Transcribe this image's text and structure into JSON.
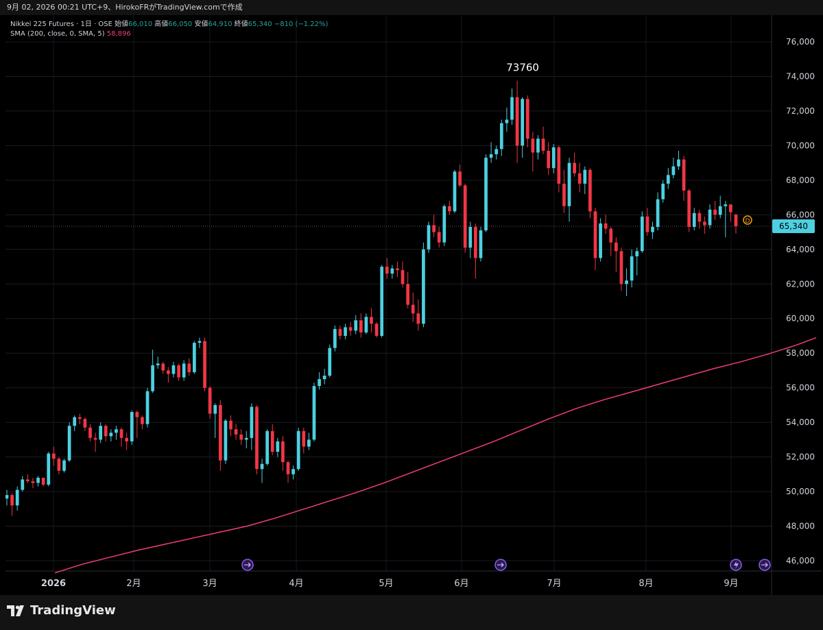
{
  "header": {
    "attribution": "9月 02, 2026 00:21 UTC+9、HirokoFRがTradingView.comで作成"
  },
  "legend": {
    "symbol": "Nikkei 225 Futures · 1日 · OSE",
    "open_label": "始値",
    "open": "66,010",
    "high_label": "高値",
    "high": "66,050",
    "low_label": "安値",
    "low": "64,910",
    "close_label": "終値",
    "close": "65,340",
    "change": "−810 (−1.22%)",
    "sma_label": "SMA (200, close, 0, SMA, 5)",
    "sma_value": "58,896"
  },
  "brand": {
    "logo_text": "TradingView"
  },
  "colors": {
    "up": "#4dd0e1",
    "down": "#f23645",
    "sma": "#f23d7a",
    "price_tag": "#4dd0e1",
    "background": "#000000"
  },
  "chart_data": {
    "type": "candlestick",
    "y_axis": {
      "min": 45300,
      "max": 77000,
      "ticks": [
        46000,
        48000,
        50000,
        52000,
        54000,
        56000,
        58000,
        60000,
        62000,
        64000,
        66000,
        68000,
        70000,
        72000,
        74000,
        76000
      ],
      "side": "right"
    },
    "x_tick_labels": [
      "2026",
      "2月",
      "3月",
      "4月",
      "5月",
      "6月",
      "7月",
      "8月",
      "9月"
    ],
    "last_price": 65340,
    "last_price_label": "65,340",
    "high_annotation": {
      "value": 73760,
      "label": "73760"
    },
    "ohlc": [
      [
        49600,
        50100,
        49200,
        49800
      ],
      [
        49800,
        49900,
        48600,
        49200
      ],
      [
        49200,
        50300,
        48900,
        50100
      ],
      [
        50100,
        50900,
        50000,
        50700
      ],
      [
        50700,
        51000,
        50500,
        50600
      ],
      [
        50600,
        50800,
        50200,
        50500
      ],
      [
        50500,
        50900,
        50300,
        50800
      ],
      [
        50800,
        50700,
        50300,
        50400
      ],
      [
        50400,
        52300,
        50300,
        52200
      ],
      [
        52200,
        52600,
        51500,
        51900
      ],
      [
        51900,
        52000,
        51000,
        51200
      ],
      [
        51200,
        51900,
        51100,
        51800
      ],
      [
        51800,
        54000,
        51700,
        53800
      ],
      [
        53800,
        54400,
        53500,
        54300
      ],
      [
        54300,
        54500,
        53900,
        54200
      ],
      [
        54200,
        54300,
        53500,
        53700
      ],
      [
        53700,
        53900,
        52900,
        53100
      ],
      [
        53100,
        53400,
        52300,
        53000
      ],
      [
        53000,
        54000,
        52800,
        53800
      ],
      [
        53800,
        53900,
        52900,
        53200
      ],
      [
        53200,
        53600,
        52900,
        53400
      ],
      [
        53400,
        53800,
        53000,
        53600
      ],
      [
        53600,
        53700,
        52600,
        53100
      ],
      [
        53100,
        53400,
        52400,
        52900
      ],
      [
        52900,
        54700,
        52700,
        54600
      ],
      [
        54600,
        54700,
        53100,
        54300
      ],
      [
        54300,
        54400,
        53600,
        53900
      ],
      [
        53900,
        56000,
        53700,
        55800
      ],
      [
        55800,
        58200,
        55700,
        57300
      ],
      [
        57300,
        57800,
        57100,
        57400
      ],
      [
        57400,
        57500,
        56800,
        57000
      ],
      [
        57000,
        57200,
        56300,
        56800
      ],
      [
        56800,
        57500,
        56600,
        57300
      ],
      [
        57300,
        57400,
        56400,
        56600
      ],
      [
        56600,
        57600,
        56400,
        57400
      ],
      [
        57400,
        57700,
        56700,
        56900
      ],
      [
        56900,
        58700,
        56800,
        58600
      ],
      [
        58600,
        58900,
        58300,
        58700
      ],
      [
        58700,
        58900,
        55800,
        56000
      ],
      [
        56000,
        56100,
        54200,
        54500
      ],
      [
        54500,
        55100,
        53100,
        55000
      ],
      [
        55000,
        55300,
        51200,
        51800
      ],
      [
        51800,
        54200,
        51600,
        54100
      ],
      [
        54100,
        54400,
        53200,
        53600
      ],
      [
        53600,
        53900,
        53000,
        53300
      ],
      [
        53300,
        53600,
        52700,
        53000
      ],
      [
        53000,
        53500,
        52500,
        53100
      ],
      [
        53100,
        55100,
        52400,
        54900
      ],
      [
        54900,
        55000,
        51000,
        51300
      ],
      [
        51300,
        51900,
        50500,
        51600
      ],
      [
        51600,
        53600,
        51500,
        53500
      ],
      [
        53500,
        53900,
        52100,
        52300
      ],
      [
        52300,
        53100,
        52000,
        52900
      ],
      [
        52900,
        53200,
        51200,
        51700
      ],
      [
        51700,
        51800,
        50500,
        51000
      ],
      [
        51000,
        51500,
        50700,
        51300
      ],
      [
        51300,
        53700,
        51200,
        53500
      ],
      [
        53500,
        53700,
        52200,
        52600
      ],
      [
        52600,
        53400,
        52400,
        53000
      ],
      [
        53000,
        56300,
        52900,
        56100
      ],
      [
        56100,
        56900,
        55900,
        56500
      ],
      [
        56500,
        57100,
        56200,
        56700
      ],
      [
        56700,
        58500,
        56600,
        58300
      ],
      [
        58300,
        59600,
        58100,
        59400
      ],
      [
        59400,
        59600,
        58800,
        59000
      ],
      [
        59000,
        59700,
        58800,
        59500
      ],
      [
        59500,
        59800,
        59000,
        59300
      ],
      [
        59300,
        60200,
        59100,
        59900
      ],
      [
        59900,
        60300,
        58900,
        59200
      ],
      [
        59200,
        60300,
        59100,
        60100
      ],
      [
        60100,
        60600,
        59200,
        59700
      ],
      [
        59700,
        59800,
        58900,
        59000
      ],
      [
        59000,
        63100,
        58900,
        63000
      ],
      [
        63000,
        63500,
        62300,
        62600
      ],
      [
        62600,
        63100,
        62300,
        62900
      ],
      [
        62900,
        63300,
        62400,
        62800
      ],
      [
        62800,
        63300,
        61800,
        62000
      ],
      [
        62000,
        62700,
        60600,
        60800
      ],
      [
        60800,
        61500,
        59800,
        60300
      ],
      [
        60300,
        61100,
        59300,
        59700
      ],
      [
        59700,
        64400,
        59500,
        64000
      ],
      [
        64000,
        65600,
        63800,
        65400
      ],
      [
        65400,
        66000,
        64700,
        65000
      ],
      [
        65000,
        65300,
        64100,
        64400
      ],
      [
        64400,
        66600,
        64200,
        66500
      ],
      [
        66500,
        66800,
        66000,
        66200
      ],
      [
        66200,
        68600,
        66100,
        68500
      ],
      [
        68500,
        68900,
        67600,
        67700
      ],
      [
        67700,
        67800,
        63800,
        64100
      ],
      [
        64100,
        65600,
        63500,
        65300
      ],
      [
        65300,
        65500,
        62300,
        63500
      ],
      [
        63500,
        65300,
        63300,
        65100
      ],
      [
        65100,
        69500,
        65000,
        69300
      ],
      [
        69300,
        70200,
        69000,
        69500
      ],
      [
        69500,
        70000,
        69200,
        69800
      ],
      [
        69800,
        71500,
        69400,
        71300
      ],
      [
        71300,
        72200,
        70800,
        71500
      ],
      [
        71500,
        73300,
        71200,
        72800
      ],
      [
        72800,
        73760,
        69000,
        70000
      ],
      [
        70000,
        72800,
        69300,
        72700
      ],
      [
        72700,
        72900,
        69900,
        70400
      ],
      [
        70400,
        70800,
        68500,
        69600
      ],
      [
        69600,
        70600,
        69200,
        70400
      ],
      [
        70400,
        71100,
        69500,
        69700
      ],
      [
        69700,
        70200,
        68300,
        68700
      ],
      [
        68700,
        70100,
        68400,
        69900
      ],
      [
        69900,
        70000,
        67300,
        67800
      ],
      [
        67800,
        68600,
        66100,
        66500
      ],
      [
        66500,
        69300,
        65600,
        69000
      ],
      [
        69000,
        69600,
        68200,
        68400
      ],
      [
        68400,
        69000,
        67300,
        67800
      ],
      [
        67800,
        68800,
        67200,
        68600
      ],
      [
        68600,
        68700,
        65800,
        66200
      ],
      [
        66200,
        66400,
        62800,
        63500
      ],
      [
        63500,
        65800,
        63300,
        65500
      ],
      [
        65500,
        66000,
        64900,
        65200
      ],
      [
        65200,
        65300,
        63600,
        64400
      ],
      [
        64400,
        64700,
        62700,
        63900
      ],
      [
        63900,
        64100,
        61600,
        62000
      ],
      [
        62000,
        62900,
        61300,
        62200
      ],
      [
        62200,
        64000,
        61800,
        63600
      ],
      [
        63600,
        64100,
        62500,
        63900
      ],
      [
        63900,
        66200,
        63800,
        65900
      ],
      [
        65900,
        66400,
        64800,
        65000
      ],
      [
        65000,
        65600,
        64600,
        65300
      ],
      [
        65300,
        67300,
        65100,
        66900
      ],
      [
        66900,
        68000,
        66700,
        67800
      ],
      [
        67800,
        68700,
        67500,
        68300
      ],
      [
        68300,
        69300,
        68100,
        68800
      ],
      [
        68800,
        69700,
        68600,
        69200
      ],
      [
        69200,
        69400,
        66800,
        67400
      ],
      [
        67400,
        67500,
        65000,
        65300
      ],
      [
        65300,
        66400,
        65100,
        66100
      ],
      [
        66100,
        66300,
        65200,
        65600
      ],
      [
        65600,
        65900,
        64900,
        65400
      ],
      [
        65400,
        66600,
        65200,
        66300
      ],
      [
        66300,
        66800,
        65700,
        66000
      ],
      [
        66000,
        67100,
        65800,
        66500
      ],
      [
        66500,
        66800,
        64700,
        66600
      ],
      [
        66600,
        66300,
        65600,
        66150
      ],
      [
        66010,
        66050,
        64910,
        65340
      ]
    ],
    "sma_200": [
      [
        80,
        45300
      ],
      [
        120,
        45800
      ],
      [
        160,
        46200
      ],
      [
        200,
        46600
      ],
      [
        240,
        46950
      ],
      [
        280,
        47300
      ],
      [
        320,
        47650
      ],
      [
        360,
        48000
      ],
      [
        400,
        48450
      ],
      [
        440,
        48950
      ],
      [
        480,
        49450
      ],
      [
        520,
        49950
      ],
      [
        560,
        50500
      ],
      [
        600,
        51100
      ],
      [
        640,
        51700
      ],
      [
        680,
        52300
      ],
      [
        720,
        52900
      ],
      [
        760,
        53550
      ],
      [
        800,
        54200
      ],
      [
        840,
        54800
      ],
      [
        880,
        55300
      ],
      [
        920,
        55750
      ],
      [
        960,
        56200
      ],
      [
        1000,
        56650
      ],
      [
        1040,
        57100
      ],
      [
        1080,
        57500
      ],
      [
        1120,
        57950
      ],
      [
        1160,
        58450
      ],
      [
        1190,
        58896
      ]
    ]
  }
}
